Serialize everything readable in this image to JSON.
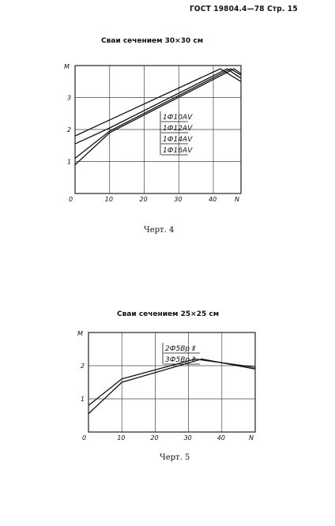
{
  "header": {
    "text": "ГОСТ 19804.4—78 Стр. 15"
  },
  "chart_data": [
    {
      "type": "line",
      "title": "Сваи сечением 30×30 см",
      "caption": "Черт. 4",
      "xlabel": "N",
      "ylabel": "M",
      "xlim": [
        0,
        48
      ],
      "ylim": [
        0,
        4
      ],
      "x_ticks": [
        0,
        10,
        20,
        30,
        40
      ],
      "y_ticks": [
        1,
        2,
        3
      ],
      "grid": true,
      "series": [
        {
          "name": "1Ф10АⅤ",
          "points": [
            [
              0,
              1.8
            ],
            [
              42,
              3.9
            ],
            [
              48,
              3.5
            ]
          ]
        },
        {
          "name": "1Ф12АⅤ",
          "points": [
            [
              0,
              1.55
            ],
            [
              10,
              2.05
            ],
            [
              44,
              3.9
            ],
            [
              48,
              3.6
            ]
          ]
        },
        {
          "name": "1Ф14АⅤ",
          "points": [
            [
              0,
              1.1
            ],
            [
              10,
              1.95
            ],
            [
              45,
              3.9
            ],
            [
              48,
              3.7
            ]
          ]
        },
        {
          "name": "1Ф16АⅤ",
          "points": [
            [
              0,
              0.9
            ],
            [
              10,
              1.9
            ],
            [
              46,
              3.9
            ],
            [
              48,
              3.75
            ]
          ]
        }
      ]
    },
    {
      "type": "line",
      "title": "Сваи сечением 25×25 см",
      "caption": "Черт. 5",
      "xlabel": "N",
      "ylabel": "M",
      "xlim": [
        0,
        50
      ],
      "ylim": [
        0,
        3
      ],
      "x_ticks": [
        0,
        10,
        20,
        30,
        40
      ],
      "y_ticks": [
        1,
        2
      ],
      "grid": true,
      "series": [
        {
          "name": "2Ф5Вр Ⅱ",
          "points": [
            [
              0,
              0.8
            ],
            [
              10,
              1.6
            ],
            [
              32,
              2.2
            ],
            [
              50,
              1.95
            ]
          ]
        },
        {
          "name": "3Ф5Вр Ⅱ",
          "points": [
            [
              0,
              0.55
            ],
            [
              10,
              1.5
            ],
            [
              34,
              2.2
            ],
            [
              50,
              1.9
            ]
          ]
        }
      ]
    }
  ]
}
